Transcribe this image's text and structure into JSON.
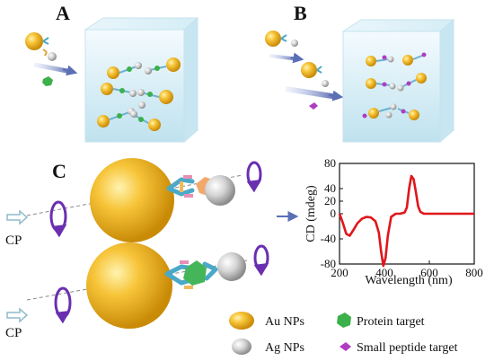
{
  "panels": {
    "a_label": "A",
    "b_label": "B",
    "c_label": "C"
  },
  "cp_labels": [
    "CP",
    "CP"
  ],
  "legend": {
    "au": "Au NPs",
    "ag": "Ag NPs",
    "protein": "Protein target",
    "peptide": "Small peptide target"
  },
  "colors": {
    "gold": "#f2b41b",
    "silver": "#bdbdbd",
    "curve": "#e0161b",
    "protein": "#3cb04a",
    "peptide": "#b03cc2",
    "rotation_arrow": "#6a2fb0",
    "cp_arrow": "#9ec9d6",
    "box": "#cfe9f3"
  },
  "chart_data": {
    "type": "line",
    "xlabel": "Wavelength (nm)",
    "ylabel": "CD (mdeg)",
    "xlim": [
      200,
      800
    ],
    "ylim": [
      -80,
      80
    ],
    "x_ticks": [
      200,
      400,
      600,
      800
    ],
    "y_ticks": [
      80,
      40,
      20,
      0,
      -40,
      -80
    ],
    "grid": false,
    "series": [
      {
        "x": [
          200,
          215,
          230,
          245,
          260,
          280,
          300,
          320,
          340,
          360,
          375,
          385,
          395,
          405,
          415,
          430,
          450,
          470,
          490,
          500,
          510,
          520,
          530,
          540,
          550,
          560,
          575,
          600,
          650,
          700,
          800
        ],
        "y": [
          0,
          -15,
          -32,
          -35,
          -27,
          -15,
          -8,
          -5,
          -6,
          -12,
          -30,
          -60,
          -83,
          -70,
          -35,
          -5,
          0,
          0,
          2,
          10,
          40,
          60,
          55,
          35,
          12,
          3,
          0,
          0,
          0,
          0,
          0
        ]
      }
    ]
  }
}
